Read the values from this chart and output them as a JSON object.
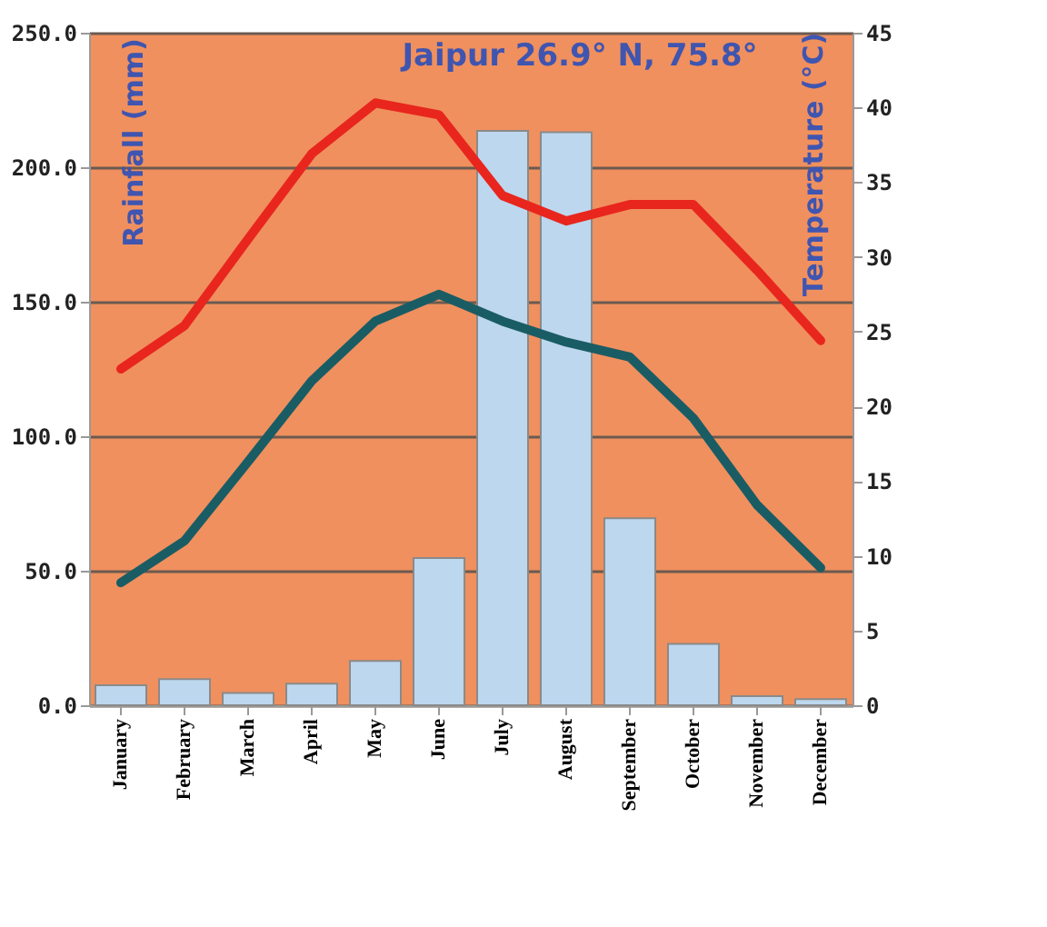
{
  "chart_data": {
    "type": "bar",
    "title": "Jaipur 26.9° N, 75.8°",
    "ylabel": "Rainfall (mm)",
    "y2label": "Temperature  (°C)",
    "categories": [
      "January",
      "February",
      "March",
      "April",
      "May",
      "June",
      "July",
      "August",
      "September",
      "October",
      "November",
      "December"
    ],
    "series": [
      {
        "color": "#bdd7ee",
        "values": [
          7.4,
          9.7,
          4.6,
          8,
          16.5,
          54.7,
          213.5,
          213,
          69.5,
          22.8,
          3.4,
          2.3
        ]
      },
      {
        "type": "line",
        "axis": "y2",
        "color": "#e8261e",
        "values": [
          22.5,
          25.4,
          31.2,
          36.9,
          40.3,
          39.5,
          34.1,
          32.4,
          33.5,
          33.5,
          29.1,
          24.4
        ]
      },
      {
        "type": "line",
        "axis": "y2",
        "color": "#1a5c64",
        "values": [
          8.2,
          11.0,
          16.3,
          21.7,
          25.7,
          27.5,
          25.7,
          24.3,
          23.3,
          19.2,
          13.4,
          9.2
        ]
      }
    ],
    "ylim": [
      0,
      250
    ],
    "yticks": [
      {
        "value": 0,
        "label": "0.0"
      },
      {
        "value": 50,
        "label": "50.0"
      },
      {
        "value": 100,
        "label": "100.0"
      },
      {
        "value": 150,
        "label": "150.0"
      },
      {
        "value": 200,
        "label": "200.0"
      },
      {
        "value": 250,
        "label": "250.0"
      }
    ],
    "y2lim": [
      0,
      45
    ],
    "y2ticks": [
      0,
      5,
      10,
      15,
      20,
      25,
      30,
      35,
      40,
      45
    ],
    "grid": "y",
    "marker": "none",
    "line_style": "solid"
  }
}
